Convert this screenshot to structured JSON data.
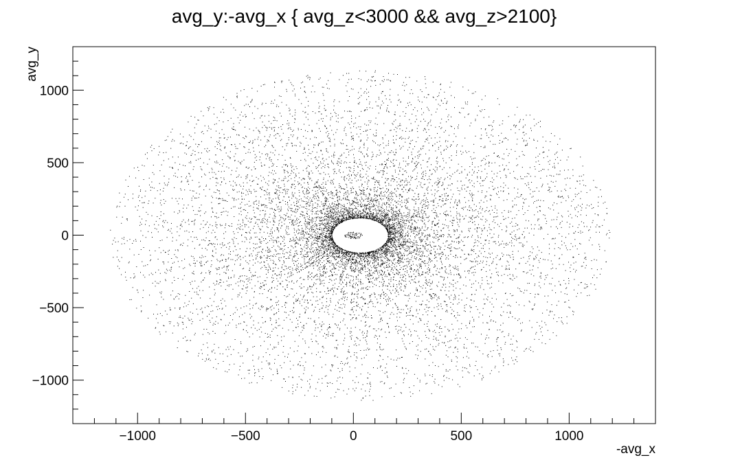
{
  "chart_data": {
    "type": "scatter",
    "title": "avg_y:-avg_x { avg_z<3000 && avg_z>2100}",
    "xlabel": "-avg_x",
    "ylabel": "avg_y",
    "xlim": [
      -1300,
      1400
    ],
    "ylim": [
      -1300,
      1300
    ],
    "x_ticks": [
      -1000,
      -500,
      0,
      500,
      1000
    ],
    "y_ticks": [
      -1000,
      -500,
      0,
      500,
      1000
    ],
    "x_tick_labels": [
      "−1000",
      "−500",
      "0",
      "500",
      "1000"
    ],
    "y_tick_labels": [
      "−1000",
      "−500",
      "0",
      "500",
      "1000"
    ],
    "grid": false,
    "legend": "none",
    "marker_color": "#000000",
    "distribution": {
      "center": [
        30,
        0
      ],
      "inner_hole_radius": [
        130,
        120
      ],
      "outer_radius": [
        1160,
        1140
      ],
      "inner_blob_center": [
        0,
        0
      ],
      "inner_blob_radius": 35
    }
  }
}
